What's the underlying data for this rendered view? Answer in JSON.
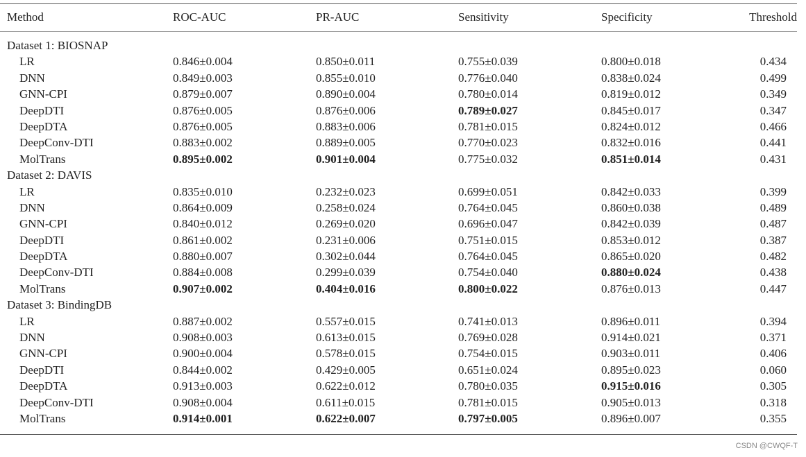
{
  "table": {
    "header": [
      "Method",
      "ROC-AUC",
      "PR-AUC",
      "Sensitivity",
      "Specificity",
      "Threshold"
    ],
    "datasets": [
      {
        "label": "Dataset 1: BIOSNAP",
        "rows": [
          {
            "method": "LR",
            "cells": [
              "0.846±0.004",
              "0.850±0.011",
              "0.755±0.039",
              "0.800±0.018"
            ],
            "threshold": "0.434"
          },
          {
            "method": "DNN",
            "cells": [
              "0.849±0.003",
              "0.855±0.010",
              "0.776±0.040",
              "0.838±0.024"
            ],
            "threshold": "0.499"
          },
          {
            "method": "GNN-CPI",
            "cells": [
              "0.879±0.007",
              "0.890±0.004",
              "0.780±0.014",
              "0.819±0.012"
            ],
            "threshold": "0.349"
          },
          {
            "method": "DeepDTI",
            "cells": [
              "0.876±0.005",
              "0.876±0.006",
              {
                "text": "0.789±0.027",
                "bold": true
              },
              "0.845±0.017"
            ],
            "threshold": "0.347"
          },
          {
            "method": "DeepDTA",
            "cells": [
              "0.876±0.005",
              "0.883±0.006",
              "0.781±0.015",
              "0.824±0.012"
            ],
            "threshold": "0.466"
          },
          {
            "method": "DeepConv-DTI",
            "cells": [
              "0.883±0.002",
              "0.889±0.005",
              "0.770±0.023",
              "0.832±0.016"
            ],
            "threshold": "0.441"
          },
          {
            "method": "MolTrans",
            "cells": [
              {
                "text": "0.895±0.002",
                "bold": true
              },
              {
                "text": "0.901±0.004",
                "bold": true
              },
              "0.775±0.032",
              {
                "text": "0.851±0.014",
                "bold": true
              }
            ],
            "threshold": "0.431"
          }
        ]
      },
      {
        "label": "Dataset 2: DAVIS",
        "rows": [
          {
            "method": "LR",
            "cells": [
              "0.835±0.010",
              "0.232±0.023",
              "0.699±0.051",
              "0.842±0.033"
            ],
            "threshold": "0.399"
          },
          {
            "method": "DNN",
            "cells": [
              "0.864±0.009",
              "0.258±0.024",
              "0.764±0.045",
              "0.860±0.038"
            ],
            "threshold": "0.489"
          },
          {
            "method": "GNN-CPI",
            "cells": [
              "0.840±0.012",
              "0.269±0.020",
              "0.696±0.047",
              "0.842±0.039"
            ],
            "threshold": "0.487"
          },
          {
            "method": "DeepDTI",
            "cells": [
              "0.861±0.002",
              "0.231±0.006",
              "0.751±0.015",
              "0.853±0.012"
            ],
            "threshold": "0.387"
          },
          {
            "method": "DeepDTA",
            "cells": [
              "0.880±0.007",
              "0.302±0.044",
              "0.764±0.045",
              "0.865±0.020"
            ],
            "threshold": "0.482"
          },
          {
            "method": "DeepConv-DTI",
            "cells": [
              "0.884±0.008",
              "0.299±0.039",
              "0.754±0.040",
              {
                "text": "0.880±0.024",
                "bold": true
              }
            ],
            "threshold": "0.438"
          },
          {
            "method": "MolTrans",
            "cells": [
              {
                "text": "0.907±0.002",
                "bold": true
              },
              {
                "text": "0.404±0.016",
                "bold": true
              },
              {
                "text": "0.800±0.022",
                "bold": true
              },
              "0.876±0.013"
            ],
            "threshold": "0.447"
          }
        ]
      },
      {
        "label": "Dataset 3: BindingDB",
        "rows": [
          {
            "method": "LR",
            "cells": [
              "0.887±0.002",
              "0.557±0.015",
              "0.741±0.013",
              "0.896±0.011"
            ],
            "threshold": "0.394"
          },
          {
            "method": "DNN",
            "cells": [
              "0.908±0.003",
              "0.613±0.015",
              "0.769±0.028",
              "0.914±0.021"
            ],
            "threshold": "0.371"
          },
          {
            "method": "GNN-CPI",
            "cells": [
              "0.900±0.004",
              "0.578±0.015",
              "0.754±0.015",
              "0.903±0.011"
            ],
            "threshold": "0.406"
          },
          {
            "method": "DeepDTI",
            "cells": [
              "0.844±0.002",
              "0.429±0.005",
              "0.651±0.024",
              "0.895±0.023"
            ],
            "threshold": "0.060"
          },
          {
            "method": "DeepDTA",
            "cells": [
              "0.913±0.003",
              "0.622±0.012",
              "0.780±0.035",
              {
                "text": "0.915±0.016",
                "bold": true
              }
            ],
            "threshold": "0.305"
          },
          {
            "method": "DeepConv-DTI",
            "cells": [
              "0.908±0.004",
              "0.611±0.015",
              "0.781±0.015",
              "0.905±0.013"
            ],
            "threshold": "0.318"
          },
          {
            "method": "MolTrans",
            "cells": [
              {
                "text": "0.914±0.001",
                "bold": true
              },
              {
                "text": "0.622±0.007",
                "bold": true
              },
              {
                "text": "0.797±0.005",
                "bold": true
              },
              "0.896±0.007"
            ],
            "threshold": "0.355"
          }
        ]
      }
    ]
  },
  "watermark": "CSDN @CWQF-T"
}
